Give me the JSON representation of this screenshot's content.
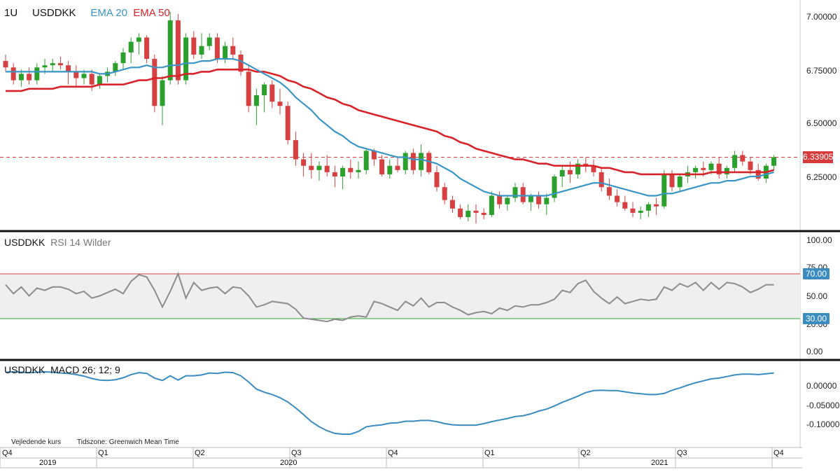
{
  "colors": {
    "up": "#2ca02c",
    "down": "#d64040",
    "ema20": "#3a95c7",
    "ema50": "#d9232a",
    "rsi": "#8c8c8c",
    "macd": "#3a8cc0",
    "ob": "#d64040",
    "os": "#2ca02c",
    "band": "#efefef"
  },
  "header": {
    "price": {
      "interval": "1U",
      "symbol": "USDDKK",
      "ema20": "EMA 20",
      "ema50": "EMA 50"
    },
    "rsi": {
      "symbol": "USDDKK",
      "label": "RSI 14 Wilder"
    },
    "macd": {
      "symbol": "USDDKK",
      "label": "MACD 26; 12; 9"
    }
  },
  "footer": {
    "note": "Vejledende kurs",
    "timezone": "Tidszone: Greenwich Mean Time"
  },
  "price_tag": "6.33905",
  "axes": {
    "price_ticks": [
      "7.00000",
      "6.75000",
      "6.50000",
      "6.25000"
    ],
    "rsi_ticks": [
      "100.00",
      "75.00",
      "50.00",
      "20.00",
      "0.00"
    ],
    "rsi_tags": [
      "70.00",
      "30.00"
    ],
    "macd_ticks": [
      "0.00000",
      "-0.05000",
      "-0.10000"
    ],
    "quarters": [
      "Q4",
      "Q1",
      "Q2",
      "Q3",
      "Q4",
      "Q1",
      "Q2",
      "Q3",
      "Q4"
    ],
    "years": [
      "2019",
      "2020",
      "2021"
    ]
  },
  "chart_data": [
    {
      "type": "candlestick",
      "title": "USDDKK",
      "interval": "1U",
      "ylim": [
        6.05,
        7.02
      ],
      "reference_price": 6.33905,
      "x_start": "2019 Q4",
      "x_end": "2021 Q3",
      "candles": [
        [
          6.79,
          6.82,
          6.74,
          6.76
        ],
        [
          6.76,
          6.78,
          6.68,
          6.7
        ],
        [
          6.7,
          6.75,
          6.67,
          6.73
        ],
        [
          6.73,
          6.76,
          6.68,
          6.7
        ],
        [
          6.7,
          6.78,
          6.68,
          6.76
        ],
        [
          6.76,
          6.8,
          6.73,
          6.77
        ],
        [
          6.77,
          6.8,
          6.74,
          6.78
        ],
        [
          6.78,
          6.81,
          6.75,
          6.77
        ],
        [
          6.77,
          6.79,
          6.68,
          6.74
        ],
        [
          6.74,
          6.77,
          6.67,
          6.71
        ],
        [
          6.71,
          6.75,
          6.68,
          6.73
        ],
        [
          6.73,
          6.75,
          6.65,
          6.68
        ],
        [
          6.68,
          6.73,
          6.66,
          6.72
        ],
        [
          6.72,
          6.76,
          6.69,
          6.74
        ],
        [
          6.74,
          6.79,
          6.72,
          6.78
        ],
        [
          6.78,
          6.85,
          6.75,
          6.83
        ],
        [
          6.83,
          6.9,
          6.78,
          6.88
        ],
        [
          6.88,
          6.92,
          6.82,
          6.9
        ],
        [
          6.9,
          6.91,
          6.78,
          6.8
        ],
        [
          6.8,
          6.82,
          6.55,
          6.58
        ],
        [
          6.58,
          6.72,
          6.49,
          6.7
        ],
        [
          6.7,
          7.02,
          6.68,
          6.98
        ],
        [
          6.98,
          7.01,
          6.68,
          6.7
        ],
        [
          6.7,
          6.92,
          6.68,
          6.9
        ],
        [
          6.9,
          6.93,
          6.8,
          6.82
        ],
        [
          6.82,
          6.92,
          6.8,
          6.86
        ],
        [
          6.86,
          6.92,
          6.84,
          6.9
        ],
        [
          6.9,
          6.92,
          6.78,
          6.8
        ],
        [
          6.8,
          6.88,
          6.78,
          6.86
        ],
        [
          6.86,
          6.9,
          6.8,
          6.82
        ],
        [
          6.82,
          6.84,
          6.72,
          6.74
        ],
        [
          6.74,
          6.77,
          6.55,
          6.58
        ],
        [
          6.58,
          6.66,
          6.49,
          6.63
        ],
        [
          6.63,
          6.69,
          6.55,
          6.68
        ],
        [
          6.68,
          6.7,
          6.57,
          6.6
        ],
        [
          6.6,
          6.66,
          6.54,
          6.58
        ],
        [
          6.58,
          6.6,
          6.4,
          6.42
        ],
        [
          6.42,
          6.46,
          6.3,
          6.33
        ],
        [
          6.33,
          6.36,
          6.25,
          6.3
        ],
        [
          6.3,
          6.36,
          6.24,
          6.28
        ],
        [
          6.28,
          6.32,
          6.23,
          6.3
        ],
        [
          6.3,
          6.35,
          6.25,
          6.27
        ],
        [
          6.27,
          6.3,
          6.2,
          6.25
        ],
        [
          6.25,
          6.3,
          6.19,
          6.29
        ],
        [
          6.29,
          6.33,
          6.24,
          6.27
        ],
        [
          6.27,
          6.32,
          6.24,
          6.28
        ],
        [
          6.28,
          6.38,
          6.26,
          6.37
        ],
        [
          6.37,
          6.38,
          6.3,
          6.33
        ],
        [
          6.33,
          6.35,
          6.25,
          6.26
        ],
        [
          6.26,
          6.33,
          6.24,
          6.3
        ],
        [
          6.3,
          6.34,
          6.27,
          6.28
        ],
        [
          6.28,
          6.37,
          6.26,
          6.36
        ],
        [
          6.36,
          6.38,
          6.26,
          6.28
        ],
        [
          6.28,
          6.4,
          6.25,
          6.36
        ],
        [
          6.36,
          6.37,
          6.26,
          6.27
        ],
        [
          6.27,
          6.3,
          6.18,
          6.2
        ],
        [
          6.2,
          6.22,
          6.12,
          6.14
        ],
        [
          6.14,
          6.16,
          6.08,
          6.1
        ],
        [
          6.1,
          6.12,
          6.05,
          6.06
        ],
        [
          6.06,
          6.12,
          6.04,
          6.09
        ],
        [
          6.09,
          6.12,
          6.03,
          6.08
        ],
        [
          6.08,
          6.1,
          6.05,
          6.07
        ],
        [
          6.07,
          6.18,
          6.06,
          6.16
        ],
        [
          6.16,
          6.18,
          6.1,
          6.12
        ],
        [
          6.12,
          6.16,
          6.09,
          6.15
        ],
        [
          6.15,
          6.22,
          6.13,
          6.2
        ],
        [
          6.2,
          6.22,
          6.12,
          6.13
        ],
        [
          6.13,
          6.17,
          6.09,
          6.16
        ],
        [
          6.16,
          6.18,
          6.1,
          6.12
        ],
        [
          6.12,
          6.17,
          6.07,
          6.15
        ],
        [
          6.15,
          6.26,
          6.13,
          6.25
        ],
        [
          6.25,
          6.3,
          6.2,
          6.28
        ],
        [
          6.28,
          6.32,
          6.22,
          6.26
        ],
        [
          6.26,
          6.33,
          6.24,
          6.31
        ],
        [
          6.31,
          6.34,
          6.27,
          6.3
        ],
        [
          6.3,
          6.33,
          6.25,
          6.27
        ],
        [
          6.27,
          6.29,
          6.18,
          6.2
        ],
        [
          6.2,
          6.24,
          6.14,
          6.16
        ],
        [
          6.16,
          6.19,
          6.11,
          6.13
        ],
        [
          6.13,
          6.16,
          6.09,
          6.1
        ],
        [
          6.1,
          6.13,
          6.06,
          6.08
        ],
        [
          6.08,
          6.11,
          6.05,
          6.09
        ],
        [
          6.09,
          6.13,
          6.06,
          6.12
        ],
        [
          6.12,
          6.15,
          6.07,
          6.11
        ],
        [
          6.11,
          6.28,
          6.1,
          6.26
        ],
        [
          6.26,
          6.28,
          6.18,
          6.2
        ],
        [
          6.2,
          6.26,
          6.18,
          6.25
        ],
        [
          6.25,
          6.3,
          6.22,
          6.27
        ],
        [
          6.27,
          6.3,
          6.24,
          6.29
        ],
        [
          6.29,
          6.32,
          6.25,
          6.28
        ],
        [
          6.28,
          6.32,
          6.26,
          6.31
        ],
        [
          6.31,
          6.34,
          6.24,
          6.26
        ],
        [
          6.26,
          6.3,
          6.24,
          6.29
        ],
        [
          6.29,
          6.37,
          6.27,
          6.35
        ],
        [
          6.35,
          6.37,
          6.3,
          6.32
        ],
        [
          6.32,
          6.34,
          6.26,
          6.28
        ],
        [
          6.28,
          6.31,
          6.23,
          6.24
        ],
        [
          6.24,
          6.31,
          6.22,
          6.3
        ],
        [
          6.3,
          6.35,
          6.28,
          6.34
        ]
      ],
      "ema20": [
        6.74,
        6.74,
        6.74,
        6.74,
        6.74,
        6.74,
        6.74,
        6.74,
        6.74,
        6.74,
        6.74,
        6.74,
        6.73,
        6.73,
        6.74,
        6.75,
        6.76,
        6.76,
        6.77,
        6.76,
        6.76,
        6.77,
        6.77,
        6.78,
        6.78,
        6.79,
        6.79,
        6.8,
        6.8,
        6.8,
        6.79,
        6.77,
        6.75,
        6.73,
        6.71,
        6.69,
        6.66,
        6.62,
        6.59,
        6.56,
        6.52,
        6.49,
        6.46,
        6.44,
        6.41,
        6.39,
        6.38,
        6.37,
        6.36,
        6.35,
        6.34,
        6.34,
        6.33,
        6.33,
        6.32,
        6.31,
        6.29,
        6.27,
        6.24,
        6.22,
        6.2,
        6.18,
        6.17,
        6.16,
        6.16,
        6.16,
        6.16,
        6.16,
        6.16,
        6.16,
        6.17,
        6.18,
        6.19,
        6.2,
        6.21,
        6.22,
        6.22,
        6.21,
        6.2,
        6.19,
        6.18,
        6.17,
        6.16,
        6.16,
        6.17,
        6.17,
        6.18,
        6.19,
        6.2,
        6.21,
        6.22,
        6.22,
        6.23,
        6.23,
        6.24,
        6.25,
        6.25,
        6.26,
        6.27
      ],
      "ema50": [
        6.65,
        6.65,
        6.65,
        6.66,
        6.66,
        6.66,
        6.66,
        6.67,
        6.67,
        6.67,
        6.67,
        6.67,
        6.68,
        6.68,
        6.68,
        6.68,
        6.69,
        6.7,
        6.7,
        6.71,
        6.71,
        6.72,
        6.72,
        6.73,
        6.73,
        6.74,
        6.74,
        6.75,
        6.75,
        6.75,
        6.75,
        6.75,
        6.74,
        6.74,
        6.73,
        6.72,
        6.7,
        6.69,
        6.67,
        6.66,
        6.64,
        6.62,
        6.61,
        6.59,
        6.58,
        6.56,
        6.55,
        6.54,
        6.53,
        6.52,
        6.51,
        6.5,
        6.49,
        6.48,
        6.47,
        6.46,
        6.44,
        6.43,
        6.41,
        6.4,
        6.38,
        6.37,
        6.36,
        6.35,
        6.34,
        6.33,
        6.33,
        6.32,
        6.31,
        6.31,
        6.3,
        6.3,
        6.3,
        6.3,
        6.3,
        6.3,
        6.29,
        6.29,
        6.28,
        6.27,
        6.27,
        6.26,
        6.26,
        6.26,
        6.26,
        6.26,
        6.26,
        6.26,
        6.26,
        6.26,
        6.27,
        6.27,
        6.27,
        6.27,
        6.27,
        6.27,
        6.27,
        6.27,
        6.28
      ]
    },
    {
      "type": "line",
      "title": "USDDKK RSI 14 Wilder",
      "ylim": [
        0,
        100
      ],
      "overbought": 70,
      "oversold": 30,
      "values": [
        60,
        52,
        58,
        50,
        57,
        55,
        58,
        58,
        56,
        52,
        54,
        48,
        50,
        53,
        56,
        52,
        63,
        69,
        67,
        55,
        40,
        54,
        70,
        48,
        62,
        55,
        57,
        58,
        52,
        58,
        57,
        50,
        40,
        42,
        45,
        44,
        43,
        38,
        30,
        29,
        28,
        27,
        29,
        28,
        31,
        32,
        31,
        45,
        43,
        40,
        37,
        45,
        41,
        48,
        40,
        44,
        44,
        40,
        37,
        33,
        35,
        36,
        34,
        39,
        37,
        41,
        40,
        42,
        42,
        44,
        47,
        55,
        53,
        61,
        64,
        54,
        48,
        43,
        49,
        43,
        45,
        47,
        46,
        47,
        58,
        55,
        61,
        58,
        62,
        55,
        62,
        56,
        62,
        61,
        58,
        53,
        56,
        60,
        60
      ],
      "macd": [
        0.033,
        0.034,
        0.033,
        0.032,
        0.033,
        0.034,
        0.033,
        0.031,
        0.03,
        0.027,
        0.023,
        0.017,
        0.013,
        0.012,
        0.014,
        0.019,
        0.027,
        0.032,
        0.03,
        0.018,
        0.012,
        0.024,
        0.013,
        0.024,
        0.024,
        0.026,
        0.031,
        0.03,
        0.033,
        0.032,
        0.024,
        0.008,
        -0.01,
        -0.018,
        -0.024,
        -0.032,
        -0.043,
        -0.058,
        -0.075,
        -0.093,
        -0.106,
        -0.116,
        -0.123,
        -0.125,
        -0.125,
        -0.118,
        -0.106,
        -0.103,
        -0.101,
        -0.097,
        -0.096,
        -0.092,
        -0.092,
        -0.09,
        -0.09,
        -0.093,
        -0.098,
        -0.101,
        -0.102,
        -0.102,
        -0.102,
        -0.098,
        -0.093,
        -0.089,
        -0.085,
        -0.08,
        -0.078,
        -0.073,
        -0.066,
        -0.061,
        -0.053,
        -0.044,
        -0.036,
        -0.028,
        -0.019,
        -0.014,
        -0.013,
        -0.014,
        -0.014,
        -0.017,
        -0.02,
        -0.022,
        -0.024,
        -0.024,
        -0.021,
        -0.013,
        -0.007,
        0.0,
        0.006,
        0.011,
        0.016,
        0.018,
        0.022,
        0.026,
        0.028,
        0.028,
        0.027,
        0.029,
        0.031
      ]
    }
  ]
}
